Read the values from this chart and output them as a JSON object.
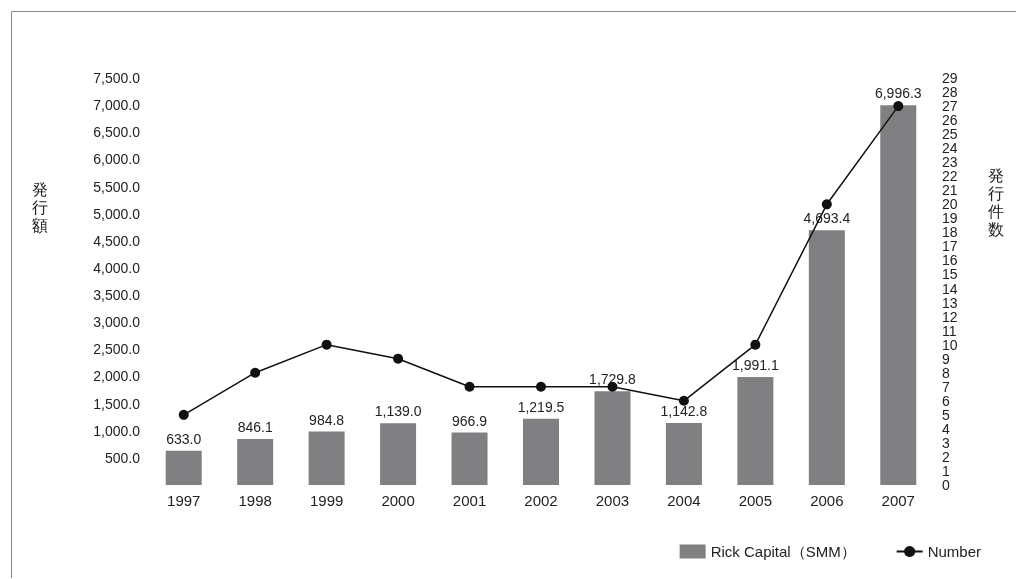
{
  "chart_data": {
    "type": "bar",
    "categories": [
      "1997",
      "1998",
      "1999",
      "2000",
      "2001",
      "2002",
      "2003",
      "2004",
      "2005",
      "2006",
      "2007"
    ],
    "ylabel": "発行額",
    "y2label": "発行件数",
    "series": [
      {
        "name": "Rick Capital（SMM）",
        "color": "#808083",
        "values": [
          633.0,
          846.1,
          984.8,
          1139.0,
          966.9,
          1219.5,
          1729.8,
          1142.8,
          1991.1,
          4693.4,
          6996.3
        ],
        "value_labels": [
          "633.0",
          "846.1",
          "984.8",
          "1,139.0",
          "966.9",
          "1,219.5",
          "1,729.8",
          "1,142.8",
          "1,991.1",
          "4,693.4",
          "6,996.3"
        ]
      },
      {
        "name": "Number",
        "type": "line",
        "axis": "y2",
        "color": "#111111",
        "marker": "circle",
        "values": [
          5,
          8,
          10,
          9,
          7,
          7,
          7,
          6,
          10,
          20,
          27
        ]
      }
    ],
    "ylim": [
      0,
      7500
    ],
    "yticks": [
      {
        "value": 500,
        "label": "500.0"
      },
      {
        "value": 1000,
        "label": "1,000.0"
      },
      {
        "value": 1500,
        "label": "1,500.0"
      },
      {
        "value": 2000,
        "label": "2,000.0"
      },
      {
        "value": 2500,
        "label": "2,500.0"
      },
      {
        "value": 3000,
        "label": "3,000.0"
      },
      {
        "value": 3500,
        "label": "3,500.0"
      },
      {
        "value": 4000,
        "label": "4,000.0"
      },
      {
        "value": 4500,
        "label": "4,500.0"
      },
      {
        "value": 5000,
        "label": "5,000.0"
      },
      {
        "value": 5500,
        "label": "5,500.0"
      },
      {
        "value": 6000,
        "label": "6,000.0"
      },
      {
        "value": 6500,
        "label": "6,500.0"
      },
      {
        "value": 7000,
        "label": "7,000.0"
      },
      {
        "value": 7500,
        "label": "7,500.0"
      }
    ],
    "y2lim": [
      0,
      29
    ],
    "y2ticks": [
      0,
      1,
      2,
      3,
      4,
      5,
      6,
      7,
      8,
      9,
      10,
      11,
      12,
      13,
      14,
      15,
      16,
      17,
      18,
      19,
      20,
      21,
      22,
      23,
      24,
      25,
      26,
      27,
      28,
      29
    ],
    "grid": false,
    "legend": "bottom right"
  }
}
